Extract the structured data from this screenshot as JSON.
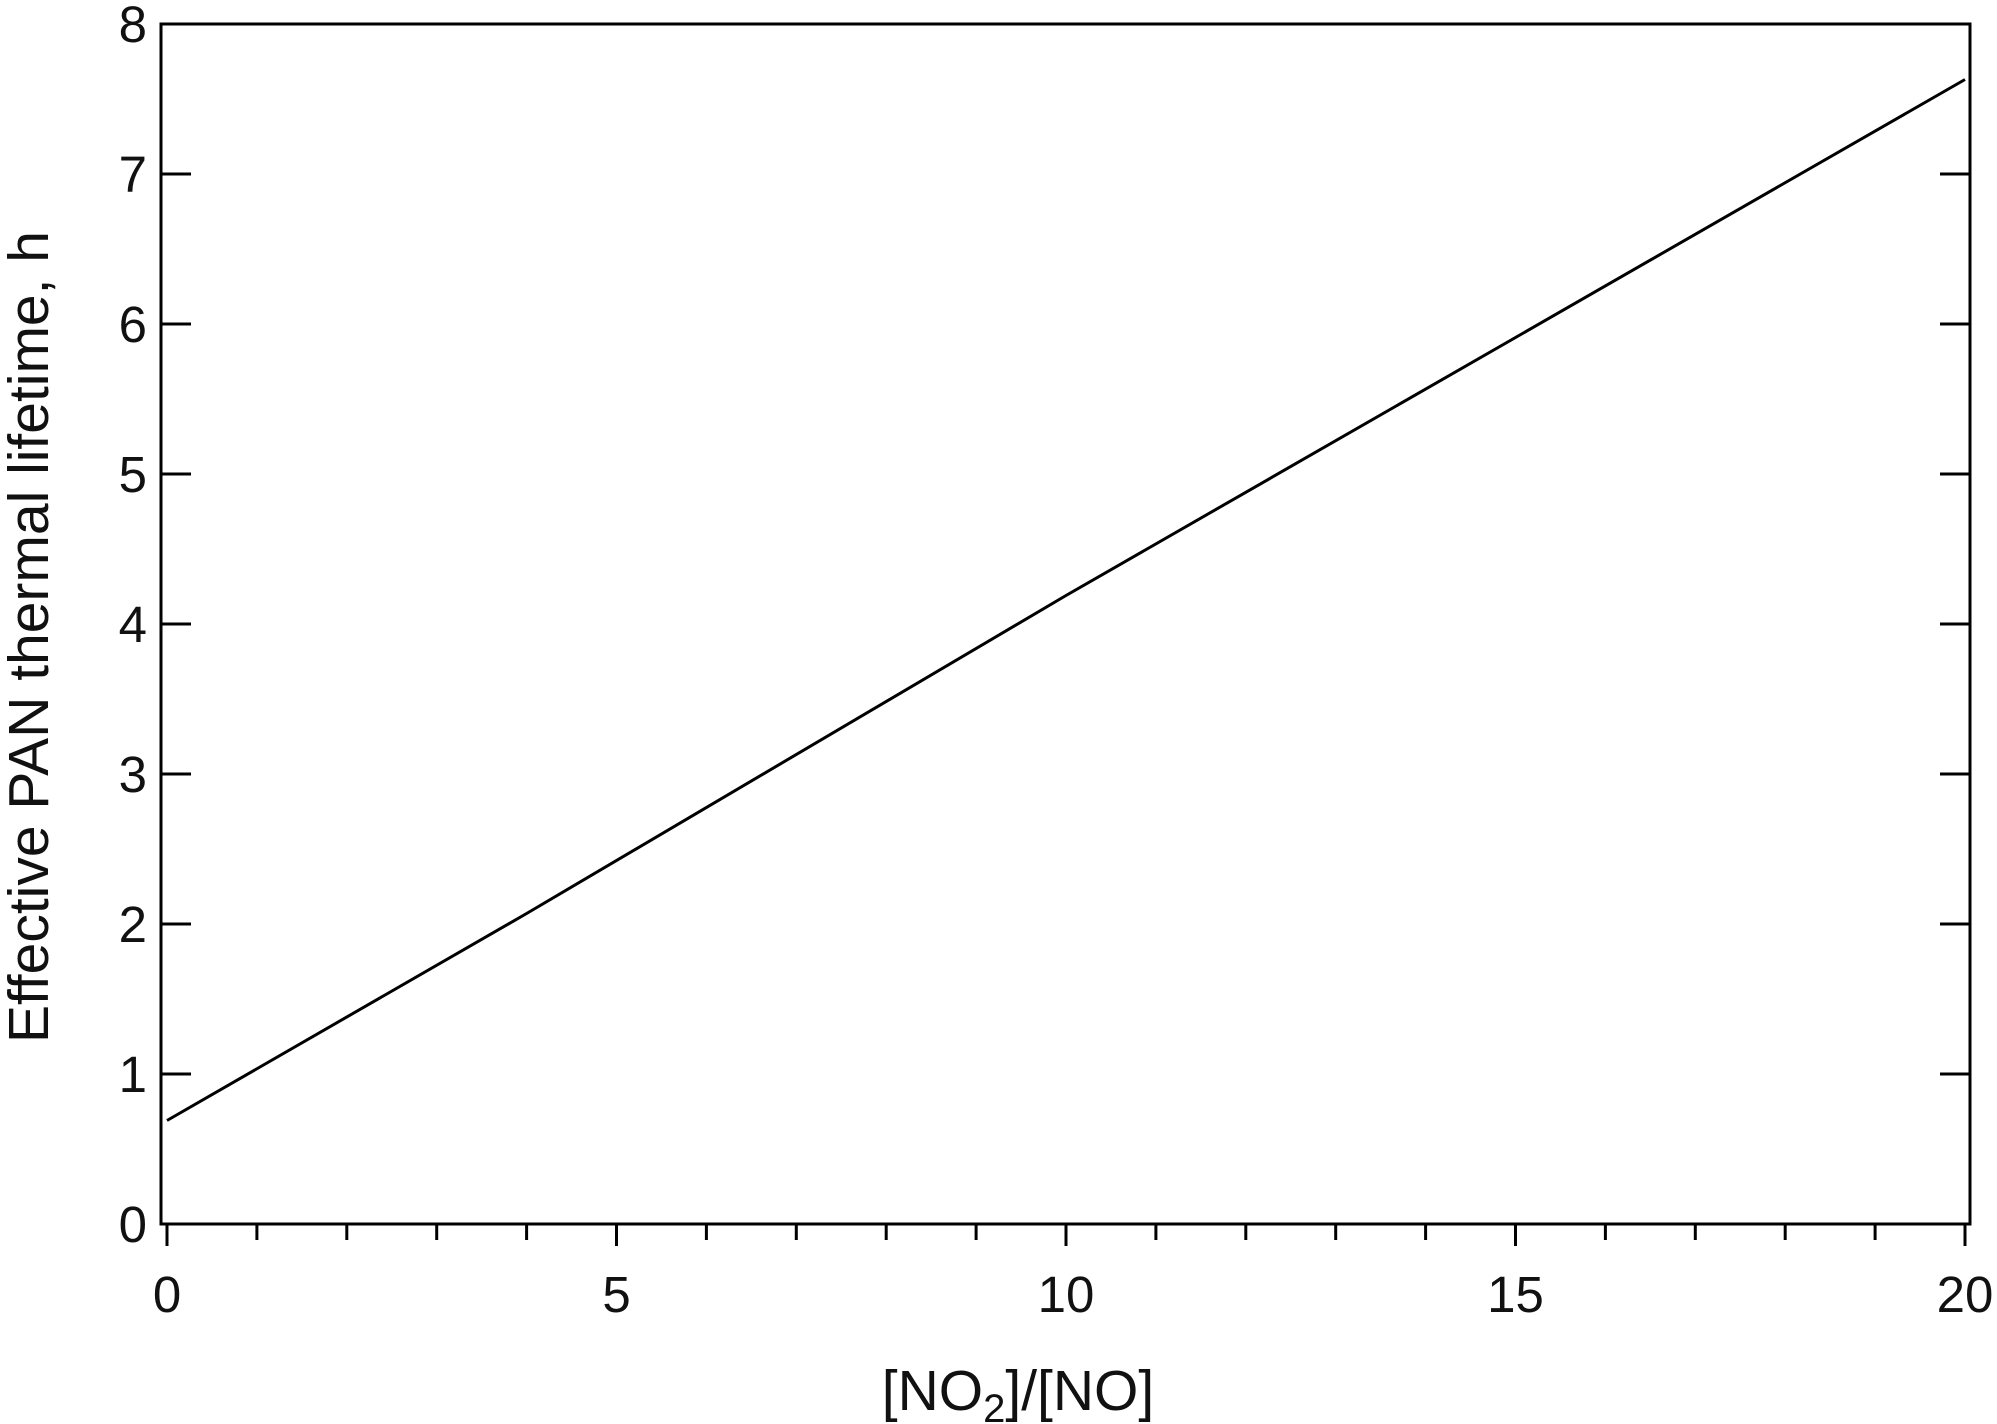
{
  "chart_data": {
    "type": "line",
    "xlabel": {
      "pre": "[NO",
      "sub": "2",
      "post": "]/[NO]"
    },
    "ylabel": "Effective PAN thermal lifetime, h",
    "x": [
      0,
      4,
      10,
      20
    ],
    "series": [
      {
        "color": "#000000",
        "values": [
          0.69,
          2.07,
          4.19,
          7.63
        ]
      }
    ],
    "xlim": [
      0,
      20
    ],
    "ylim": [
      0,
      8
    ],
    "xticks": [
      0,
      5,
      10,
      15,
      20
    ],
    "xminorticks": [
      1,
      2,
      3,
      4,
      6,
      7,
      8,
      9,
      11,
      12,
      13,
      14,
      16,
      17,
      18,
      19
    ],
    "yticks": [
      0,
      1,
      2,
      3,
      4,
      5,
      6,
      7,
      8
    ]
  }
}
